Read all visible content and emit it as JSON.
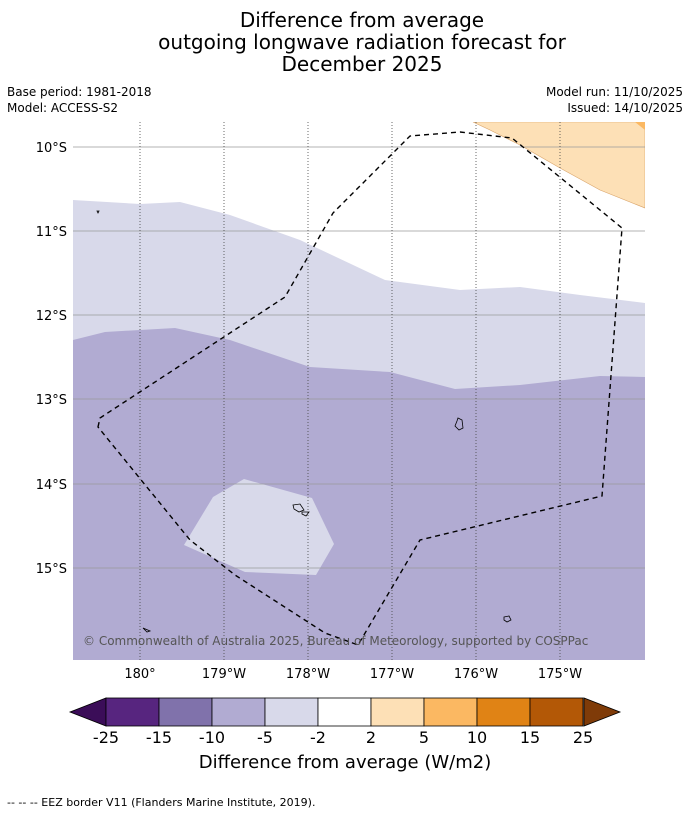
{
  "title": {
    "line1": "Difference from average",
    "line2": "outgoing longwave radiation forecast for",
    "line3": "December 2025"
  },
  "meta": {
    "base_period": "Base period: 1981-2018",
    "model": "Model: ACCESS-S2",
    "model_run": "Model run: 11/10/2025",
    "issued": "Issued: 14/10/2025"
  },
  "map": {
    "lat_labels": [
      "10°S",
      "11°S",
      "12°S",
      "13°S",
      "14°S",
      "15°S"
    ],
    "lon_labels": [
      "180°",
      "179°W",
      "178°W",
      "177°W",
      "176°W",
      "175°W"
    ],
    "copyright": "© Commonwealth of Australia 2025, Bureau of Meteorology, supported by COSPPac",
    "region_colors": {
      "neg_10_5": "#b1abd2",
      "neg_5_2": "#d8d9ea",
      "neutral": "#ffffff",
      "pos_2_5": "#fde0b6",
      "pos_5_10": "#fbb862"
    }
  },
  "colorbar": {
    "labels": [
      "-25",
      "-15",
      "-10",
      "-5",
      "-2",
      "2",
      "5",
      "10",
      "15",
      "25"
    ],
    "colors": [
      "#57257f",
      "#8072ab",
      "#b1abd2",
      "#d8d9ea",
      "#ffffff",
      "#fde0b6",
      "#fbb862",
      "#e08315",
      "#b35806"
    ],
    "extend_low_color": "#3b0d58",
    "extend_high_color": "#7f3b08",
    "title": "Difference from average (W/m2)"
  },
  "footer": {
    "legend_text": "--  --  -- EEZ border V11 (Flanders Marine Institute, 2019)."
  }
}
